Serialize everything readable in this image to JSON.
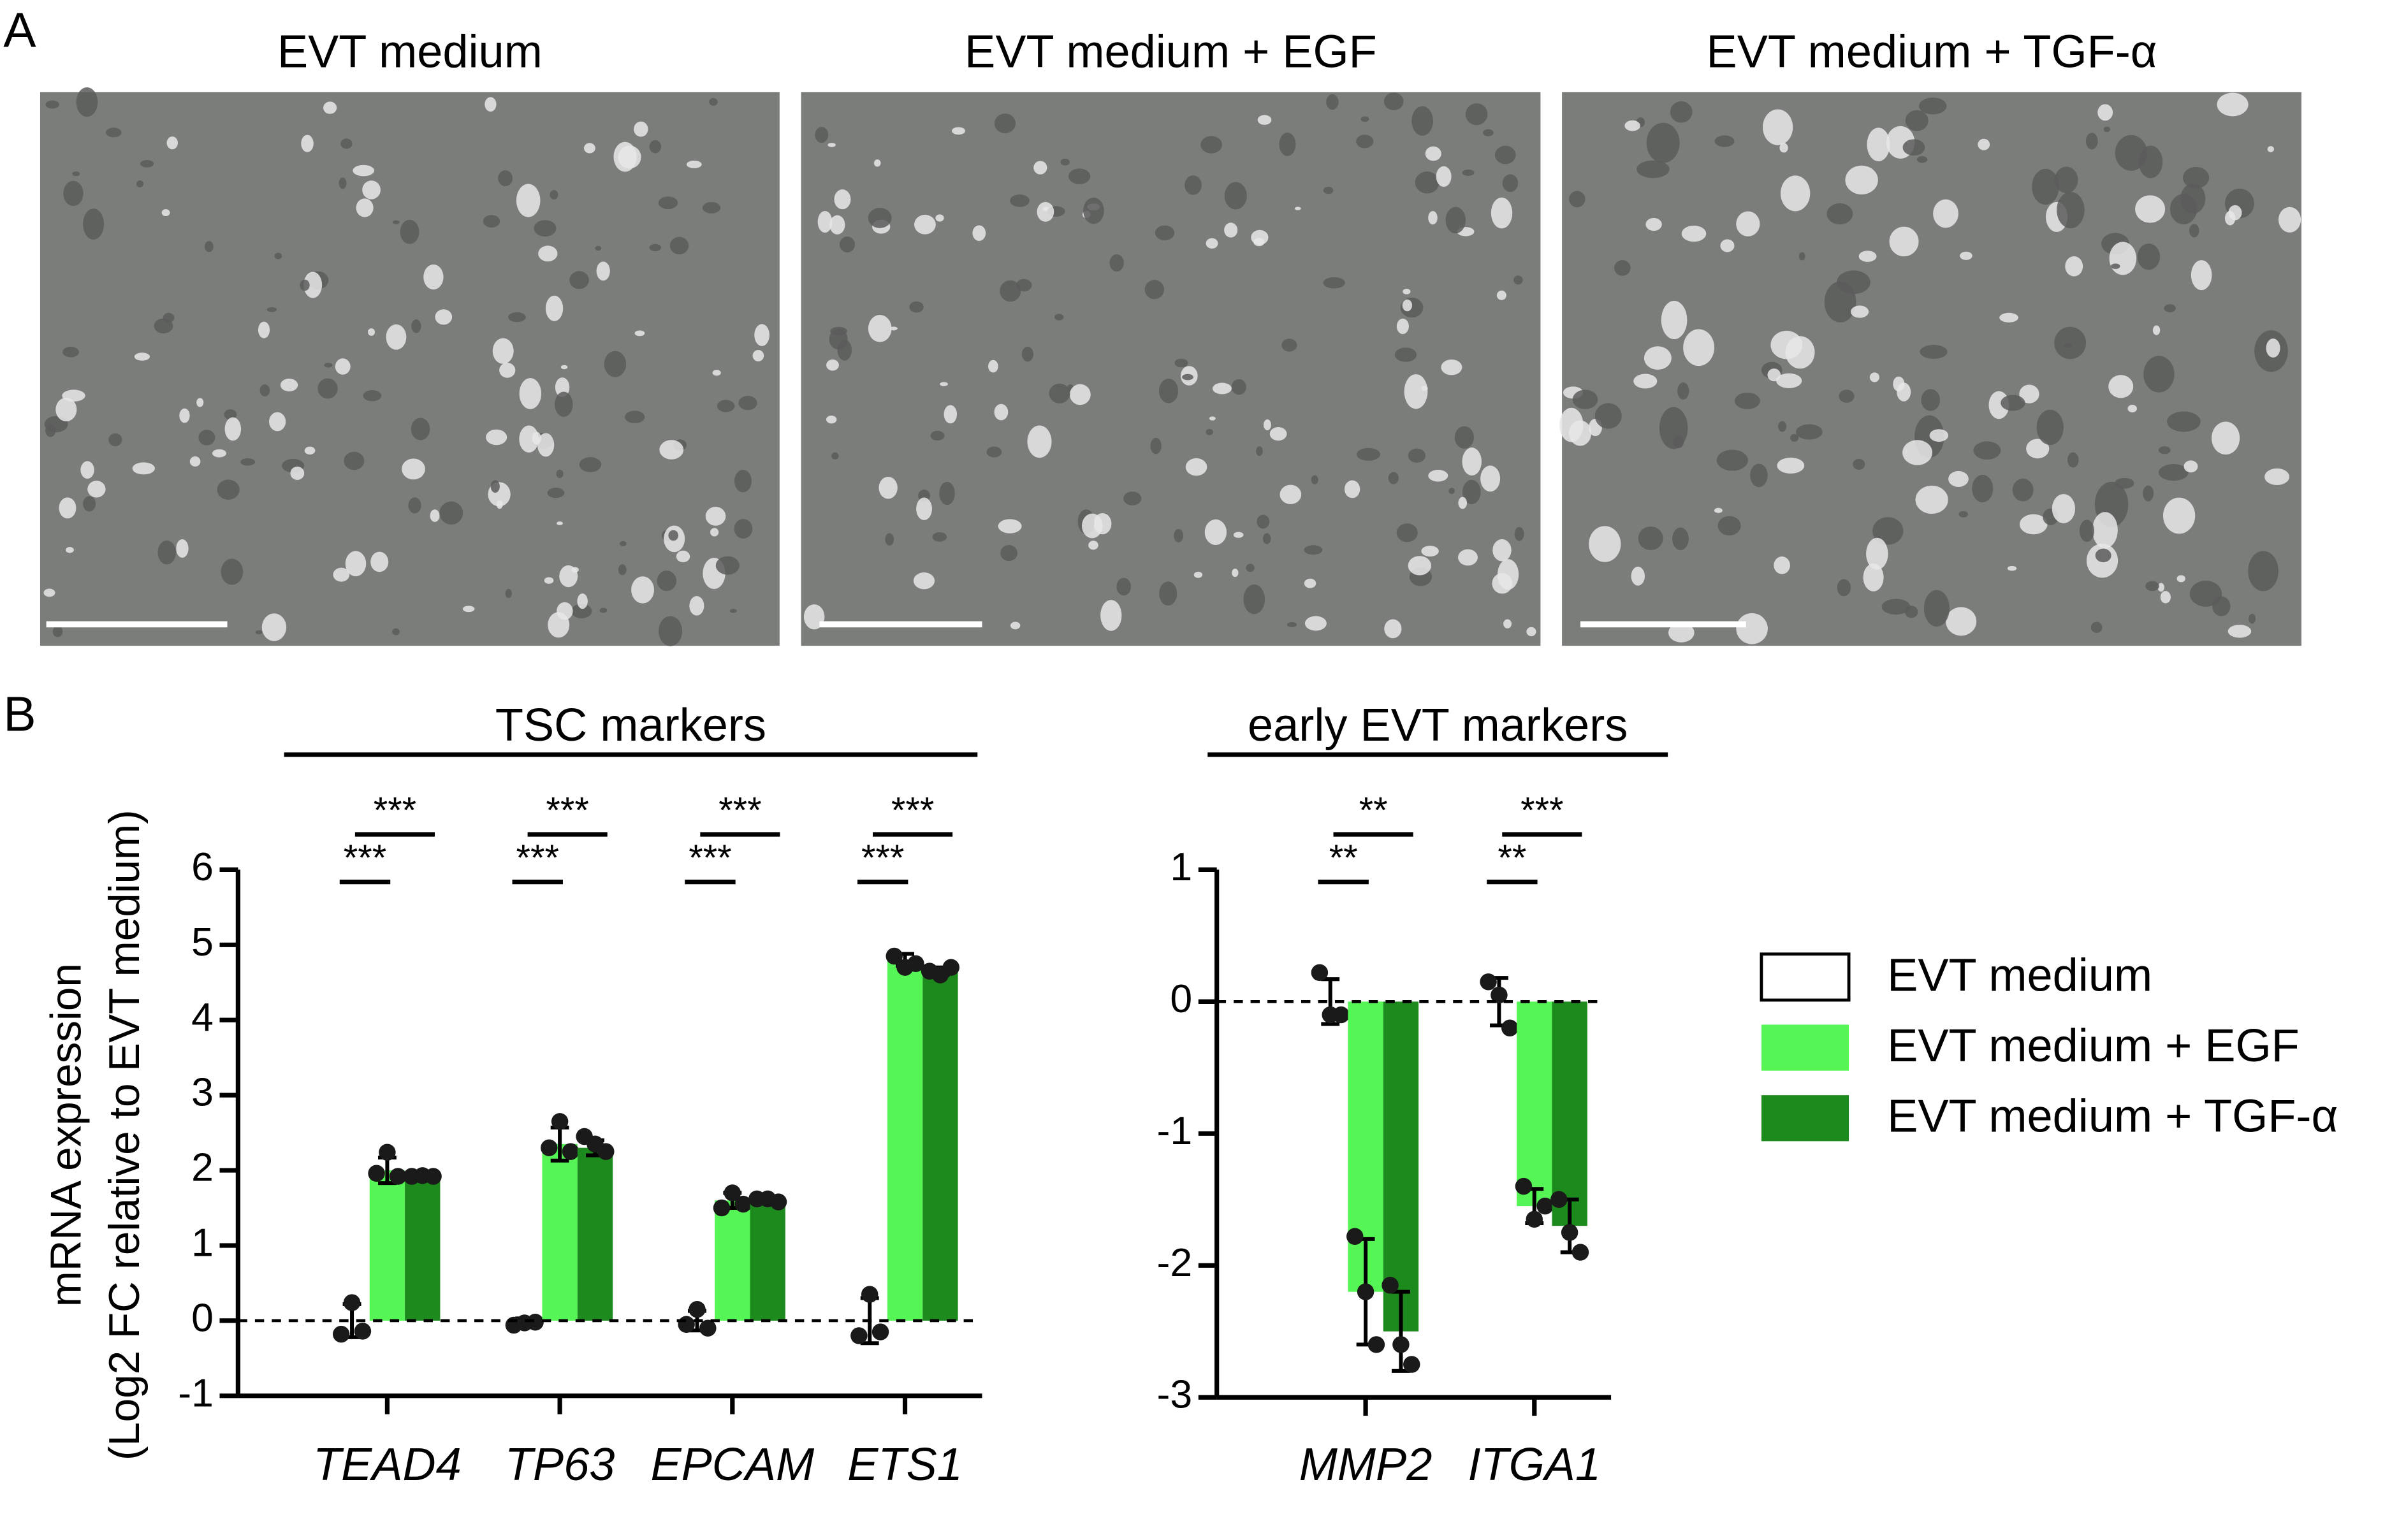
{
  "panel_labels": [
    "A",
    "B"
  ],
  "micrographs": [
    "EVT medium",
    "EVT medium + EGF",
    "EVT medium + TGF-α"
  ],
  "ylabel_lines": [
    "mRNA expression",
    "(Log2 FC relative to EVT medium)"
  ],
  "chart_data": [
    {
      "type": "bar",
      "group_title": "TSC markers",
      "categories": [
        "TEAD4",
        "TP63",
        "EPCAM",
        "ETS1"
      ],
      "ylim": [
        -1,
        6
      ],
      "yticks": [
        -1,
        0,
        1,
        2,
        3,
        4,
        5,
        6
      ],
      "series": [
        {
          "name": "EVT medium",
          "color": "#ffffff",
          "values": [
            0,
            0,
            0,
            0
          ],
          "errors": [
            0.22,
            0.03,
            0.13,
            0.3
          ],
          "points": [
            [
              -0.18,
              0.24,
              -0.14
            ],
            [
              -0.06,
              -0.03,
              -0.02
            ],
            [
              -0.05,
              0.15,
              -0.1
            ],
            [
              -0.2,
              0.35,
              -0.15
            ]
          ]
        },
        {
          "name": "EVT medium + EGF",
          "color": "#55f555",
          "values": [
            2.0,
            2.35,
            1.6,
            4.8
          ],
          "errors": [
            0.17,
            0.22,
            0.1,
            0.08
          ],
          "points": [
            [
              1.96,
              2.24,
              1.92
            ],
            [
              2.3,
              2.65,
              2.25
            ],
            [
              1.5,
              1.7,
              1.55
            ],
            [
              4.85,
              4.7,
              4.75
            ]
          ]
        },
        {
          "name": "EVT medium + TGF-α",
          "color": "#1c8a1c",
          "values": [
            1.95,
            2.3,
            1.6,
            4.65
          ],
          "errors": [
            0.02,
            0.1,
            0.03,
            0.05
          ],
          "points": [
            [
              1.92,
              1.93,
              1.92
            ],
            [
              2.45,
              2.35,
              2.25
            ],
            [
              1.62,
              1.62,
              1.58
            ],
            [
              4.65,
              4.6,
              4.7
            ]
          ]
        }
      ],
      "sig_lower": [
        "***",
        "***",
        "***",
        "***"
      ],
      "sig_upper": [
        "***",
        "***",
        "***",
        "***"
      ]
    },
    {
      "type": "bar",
      "group_title": "early EVT markers",
      "categories": [
        "MMP2",
        "ITGA1"
      ],
      "ylim": [
        -3,
        1
      ],
      "yticks": [
        -3,
        -2,
        -1,
        0,
        1
      ],
      "series": [
        {
          "color": "#ffffff",
          "values": [
            0,
            0
          ],
          "errors": [
            0.17,
            0.18
          ],
          "points": [
            [
              0.22,
              -0.1,
              -0.1
            ],
            [
              0.15,
              0.05,
              -0.2
            ]
          ]
        },
        {
          "color": "#55f555",
          "values": [
            -2.2,
            -1.55
          ],
          "errors": [
            0.4,
            0.13
          ],
          "points": [
            [
              -1.78,
              -2.2,
              -2.6
            ],
            [
              -1.4,
              -1.65,
              -1.55
            ]
          ]
        },
        {
          "color": "#1c8a1c",
          "values": [
            -2.5,
            -1.7
          ],
          "errors": [
            0.3,
            0.2
          ],
          "points": [
            [
              -2.15,
              -2.6,
              -2.75
            ],
            [
              -1.5,
              -1.75,
              -1.9
            ]
          ]
        }
      ],
      "sig_lower": [
        "**",
        "**"
      ],
      "sig_upper": [
        "**",
        "***"
      ]
    }
  ]
}
